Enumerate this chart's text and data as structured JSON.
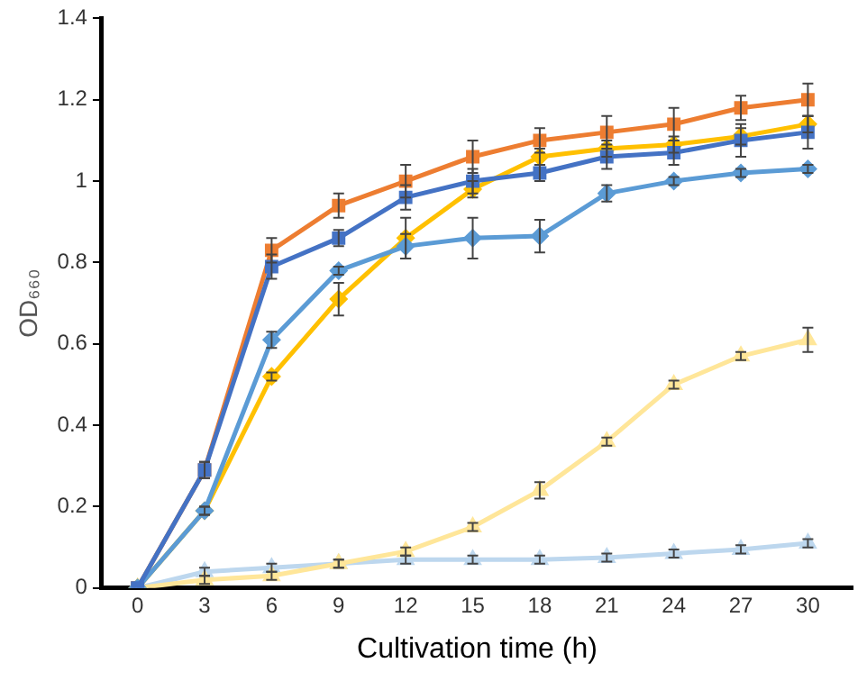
{
  "chart_data": {
    "type": "line",
    "xlabel": "Cultivation time (h)",
    "ylabel": "OD₆₆₀",
    "x": [
      0,
      3,
      6,
      9,
      12,
      15,
      18,
      21,
      24,
      27,
      30
    ],
    "xlim": [
      -1.6,
      32
    ],
    "xticks": [
      0,
      3,
      6,
      9,
      12,
      15,
      18,
      21,
      24,
      27,
      30
    ],
    "ylim": [
      0,
      1.4
    ],
    "yticks": [
      0,
      0.2,
      0.4,
      0.6,
      0.8,
      1,
      1.2,
      1.4
    ],
    "grid": false,
    "legend": false,
    "line_style": "solid",
    "series": [
      {
        "color": "#4472c4",
        "marker": "square",
        "values": [
          0,
          0.29,
          0.79,
          0.86,
          0.96,
          1.0,
          1.02,
          1.06,
          1.07,
          1.1,
          1.12
        ],
        "errors": [
          null,
          0.02,
          0.03,
          0.02,
          0.03,
          0.03,
          0.02,
          0.03,
          0.03,
          0.04,
          0.04
        ]
      },
      {
        "color": "#5b9bd5",
        "marker": "diamond",
        "values": [
          0,
          0.19,
          0.61,
          0.78,
          0.84,
          0.86,
          0.865,
          0.97,
          1.0,
          1.02,
          1.03
        ],
        "errors": [
          null,
          0.01,
          0.02,
          0.01,
          0.03,
          0.05,
          0.04,
          0.02,
          0.01,
          0.01,
          0.01
        ]
      },
      {
        "color": "#ffc000",
        "marker": "diamond",
        "values": [
          0,
          0.19,
          0.52,
          0.71,
          0.86,
          0.98,
          1.06,
          1.08,
          1.09,
          1.11,
          1.14
        ],
        "errors": [
          null,
          0.01,
          0.01,
          0.04,
          0.05,
          0.02,
          0.02,
          0.02,
          0.02,
          0.02,
          0.02
        ]
      },
      {
        "color": "#ed7d31",
        "marker": "square",
        "values": [
          0,
          0.29,
          0.83,
          0.94,
          1.0,
          1.06,
          1.1,
          1.12,
          1.14,
          1.18,
          1.2
        ],
        "errors": [
          null,
          0.02,
          0.03,
          0.03,
          0.04,
          0.04,
          0.03,
          0.04,
          0.04,
          0.03,
          0.04
        ]
      },
      {
        "color": "#ffe699",
        "marker": "triangle",
        "values": [
          0,
          0.02,
          0.03,
          0.06,
          0.09,
          0.15,
          0.24,
          0.36,
          0.5,
          0.57,
          0.61
        ],
        "errors": [
          null,
          0.01,
          0.01,
          0.01,
          0.01,
          0.01,
          0.02,
          0.01,
          0.01,
          0.01,
          0.03
        ]
      },
      {
        "color": "#bdd7ee",
        "marker": "triangle",
        "values": [
          0,
          0.04,
          0.05,
          0.06,
          0.07,
          0.07,
          0.07,
          0.075,
          0.085,
          0.095,
          0.11
        ],
        "errors": [
          null,
          0.01,
          0.01,
          0.01,
          0.01,
          0.01,
          0.01,
          0.01,
          0.01,
          0.01,
          0.01
        ]
      }
    ]
  }
}
